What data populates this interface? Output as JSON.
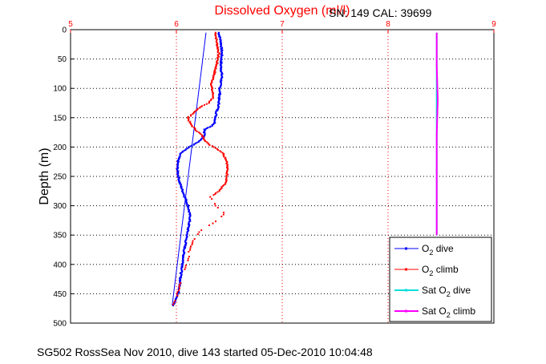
{
  "chart_data": {
    "type": "line",
    "title": "Dissolved Oxygen (ml/l)",
    "title_color": "#ff0000",
    "sn_cal": "SN: 149  CAL: 39699",
    "ylabel": "Depth (m)",
    "xlim": [
      5,
      9
    ],
    "ylim": [
      0,
      500
    ],
    "y_reversed": true,
    "x_axis_position": "top",
    "x_ticks": [
      "5",
      "6",
      "7",
      "8",
      "9"
    ],
    "y_ticks": [
      "0",
      "50",
      "100",
      "150",
      "200",
      "250",
      "300",
      "350",
      "400",
      "450",
      "500"
    ],
    "grid": true,
    "legend_position": "bottom-right",
    "footer": "SG502 RossSea Nov 2010, dive 143 started 05-Dec-2010 10:04:48",
    "series": [
      {
        "name": "O2 dive",
        "legend_main": "O",
        "legend_sub": "2",
        "legend_rest": " dive",
        "color": "#0000ff",
        "style": "dots",
        "x": [
          6.4,
          6.42,
          6.43,
          6.42,
          6.43,
          6.41,
          6.41,
          6.4,
          6.4,
          6.38,
          6.37,
          6.36,
          6.33,
          6.29,
          6.27,
          6.26,
          6.27,
          6.25,
          6.22,
          6.12,
          6.04,
          6.02,
          6.01,
          6.01,
          6.02,
          6.03,
          6.05,
          6.07,
          6.09,
          6.11,
          6.12,
          6.13,
          6.12,
          6.11,
          6.1,
          6.09,
          6.07,
          6.06,
          6.04,
          6.03,
          6.01,
          5.98,
          5.97
        ],
        "y": [
          5,
          20,
          40,
          60,
          80,
          100,
          110,
          120,
          130,
          140,
          150,
          160,
          165,
          168,
          170,
          175,
          180,
          185,
          190,
          200,
          210,
          220,
          230,
          240,
          250,
          260,
          270,
          280,
          290,
          300,
          310,
          320,
          330,
          340,
          350,
          360,
          380,
          400,
          420,
          440,
          455,
          465,
          470
        ]
      },
      {
        "name": "O2 climb",
        "legend_main": "O",
        "legend_sub": "2",
        "legend_rest": " climb",
        "color": "#ff0000",
        "style": "dots",
        "x": [
          6.37,
          6.38,
          6.4,
          6.38,
          6.35,
          6.33,
          6.34,
          6.35,
          6.33,
          6.31,
          6.3,
          6.24,
          6.11,
          6.13,
          6.18,
          6.21,
          6.24,
          6.26,
          6.28,
          6.3,
          6.36,
          6.44,
          6.48,
          6.48,
          6.48,
          6.47,
          6.4,
          6.32,
          6.35,
          6.4,
          6.45,
          6.43,
          6.35,
          6.29,
          6.22,
          6.16,
          6.12,
          6.11,
          6.08,
          6.04,
          6.01,
          5.98,
          5.96
        ],
        "y": [
          5,
          20,
          40,
          60,
          80,
          95,
          105,
          115,
          120,
          122,
          125,
          130,
          150,
          160,
          170,
          175,
          180,
          185,
          190,
          195,
          200,
          210,
          225,
          240,
          250,
          260,
          275,
          285,
          295,
          305,
          310,
          320,
          330,
          335,
          345,
          360,
          380,
          395,
          410,
          430,
          450,
          465,
          470
        ]
      },
      {
        "name": "Sat O2 dive",
        "legend_main": "Sat O",
        "legend_sub": "2",
        "legend_rest": " dive",
        "color": "#00dddd",
        "style": "line",
        "x": [
          8.46,
          8.46,
          8.46,
          8.46,
          8.46,
          8.46,
          8.46,
          8.46
        ],
        "y": [
          5,
          100,
          180,
          250,
          300,
          330,
          345,
          350
        ]
      },
      {
        "name": "Sat O2 climb",
        "legend_main": "Sat O",
        "legend_sub": "2",
        "legend_rest": " climb",
        "color": "#ff00ff",
        "style": "line",
        "x": [
          8.46,
          8.46,
          8.47,
          8.46,
          8.46,
          8.46,
          8.46,
          8.46
        ],
        "y": [
          5,
          60,
          120,
          180,
          240,
          300,
          340,
          350
        ]
      }
    ],
    "fit_line": {
      "color": "#0000ff",
      "x": [
        6.28,
        5.96
      ],
      "y": [
        5,
        470
      ]
    }
  }
}
